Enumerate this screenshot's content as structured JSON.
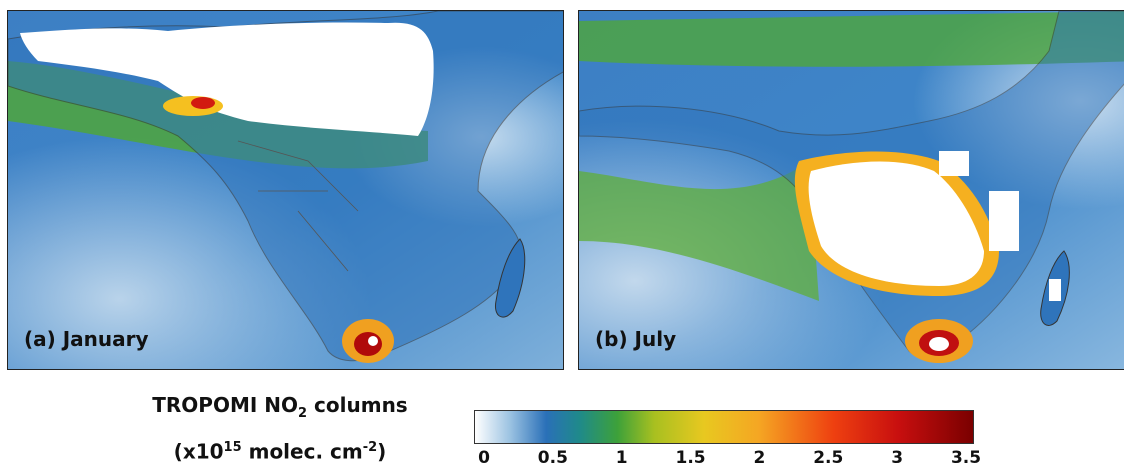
{
  "panels": [
    {
      "label": "(a) January"
    },
    {
      "label": "(b) July"
    }
  ],
  "legend": {
    "title_main": "TROPOMI NO",
    "title_sub": "2",
    "title_suffix": " columns",
    "unit_prefix": "(x10",
    "unit_sup": "15",
    "unit_mid": " molec. cm",
    "unit_sup2": "-2",
    "unit_suffix": ")",
    "ticks": [
      "0",
      "0.5",
      "1",
      "1.5",
      "2",
      "2.5",
      "3",
      "3.5"
    ]
  },
  "colors": {
    "low": "#ffffff",
    "blue": "#2a70b8",
    "green": "#3da13a",
    "yellow": "#e8c820",
    "red": "#ee4010",
    "dark_red": "#7a0000"
  }
}
